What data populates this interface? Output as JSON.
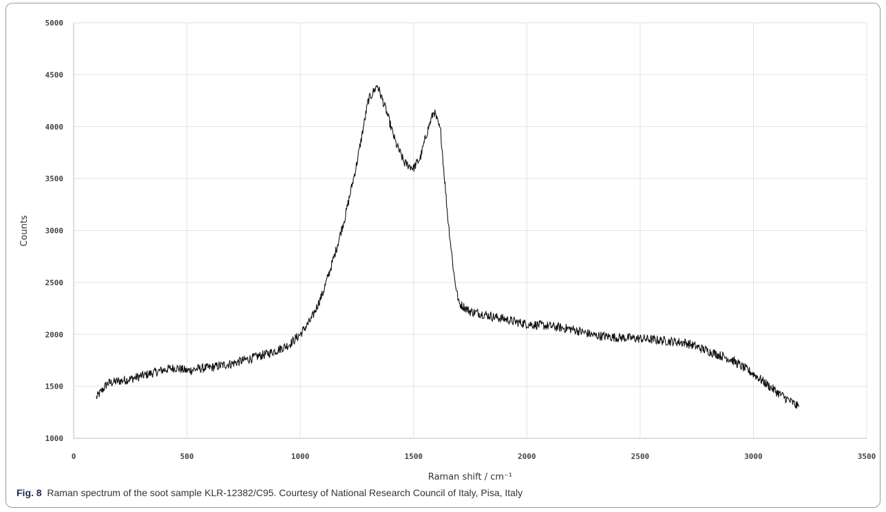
{
  "figure": {
    "caption_label": "Fig. 8",
    "caption_text": "Raman spectrum of the soot sample KLR-12382/C95. Courtesy of National Research Council of Italy, Pisa, Italy"
  },
  "chart_data": {
    "type": "line",
    "title": "",
    "xlabel": "Raman shift / cm⁻¹",
    "ylabel": "Counts",
    "xlim": [
      0,
      3500
    ],
    "ylim": [
      1000,
      5000
    ],
    "xticks": [
      0,
      500,
      1000,
      1500,
      2000,
      2500,
      3000,
      3500
    ],
    "yticks": [
      1000,
      1500,
      2000,
      2500,
      3000,
      3500,
      4000,
      4500,
      5000
    ],
    "grid": true,
    "legend": "none",
    "line_color": "#111111",
    "series": [
      {
        "x": [
          100,
          150,
          200,
          250,
          300,
          350,
          400,
          450,
          500,
          550,
          600,
          650,
          700,
          750,
          800,
          850,
          900,
          950,
          1000,
          1050,
          1100,
          1150,
          1200,
          1250,
          1300,
          1340,
          1380,
          1420,
          1460,
          1500,
          1530,
          1560,
          1590,
          1620,
          1650,
          1680,
          1700,
          1750,
          1800,
          1850,
          1900,
          1950,
          2000,
          2100,
          2200,
          2300,
          2400,
          2500,
          2600,
          2700,
          2800,
          2900,
          3000,
          3100,
          3200
        ],
        "values": [
          1390,
          1530,
          1550,
          1570,
          1600,
          1630,
          1660,
          1680,
          1650,
          1670,
          1680,
          1700,
          1720,
          1750,
          1780,
          1810,
          1850,
          1900,
          2000,
          2150,
          2400,
          2750,
          3150,
          3650,
          4250,
          4400,
          4150,
          3850,
          3650,
          3600,
          3700,
          3950,
          4150,
          3950,
          3150,
          2550,
          2300,
          2220,
          2200,
          2170,
          2150,
          2120,
          2100,
          2080,
          2050,
          1990,
          1970,
          1960,
          1940,
          1920,
          1840,
          1760,
          1620,
          1450,
          1300
        ]
      }
    ]
  }
}
